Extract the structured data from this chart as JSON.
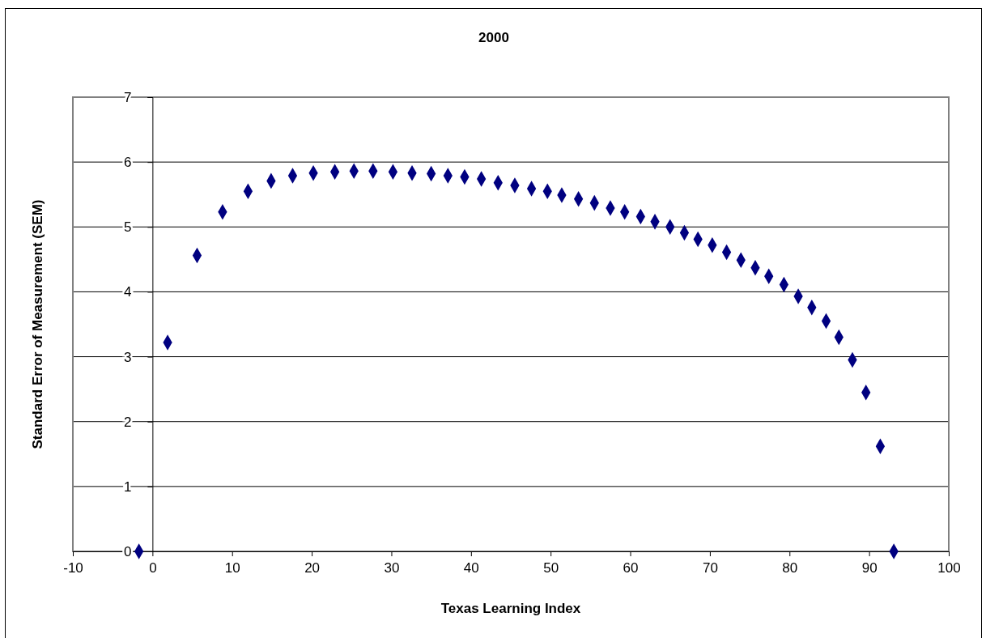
{
  "chart_data": {
    "type": "scatter",
    "title": "2000",
    "xlabel": "Texas Learning Index",
    "ylabel": "Standard Error of Measurement (SEM)",
    "x": [
      -1.7,
      1.9,
      5.6,
      8.8,
      12.0,
      14.9,
      17.6,
      20.2,
      22.9,
      25.3,
      27.7,
      30.2,
      32.6,
      35.0,
      37.1,
      39.2,
      41.3,
      43.4,
      45.5,
      47.6,
      49.6,
      51.4,
      53.5,
      55.5,
      57.5,
      59.3,
      61.3,
      63.1,
      65.0,
      66.8,
      68.5,
      70.3,
      72.1,
      73.9,
      75.7,
      77.4,
      79.3,
      81.1,
      82.8,
      84.6,
      86.2,
      87.9,
      89.6,
      91.4,
      93.1
    ],
    "values": [
      0,
      3.22,
      4.56,
      5.23,
      5.55,
      5.71,
      5.79,
      5.83,
      5.85,
      5.86,
      5.86,
      5.85,
      5.83,
      5.82,
      5.79,
      5.77,
      5.74,
      5.68,
      5.64,
      5.59,
      5.55,
      5.49,
      5.43,
      5.37,
      5.29,
      5.23,
      5.16,
      5.08,
      5.0,
      4.91,
      4.81,
      4.72,
      4.61,
      4.49,
      4.37,
      4.24,
      4.11,
      3.93,
      3.76,
      3.55,
      3.3,
      2.95,
      2.45,
      1.62,
      0
    ],
    "color": "#000080",
    "marker": "diamond",
    "xlim": [
      -10,
      100
    ],
    "xticks": [
      -10,
      0,
      10,
      20,
      30,
      40,
      50,
      60,
      70,
      80,
      90,
      100
    ],
    "ylim": [
      0,
      7
    ],
    "yticks": [
      0,
      1,
      2,
      3,
      4,
      5,
      6,
      7
    ],
    "grid": "y"
  }
}
